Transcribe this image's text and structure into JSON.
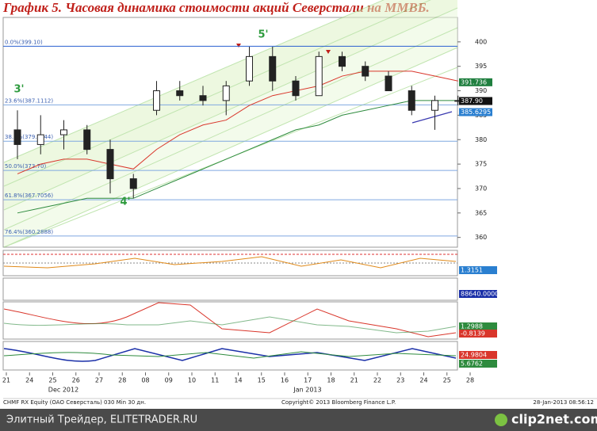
{
  "header": {
    "title": "График 5.   Часовая динамика стоимости акций Северстали на ММВБ."
  },
  "chart_data": {
    "type": "candlestick",
    "categories": [
      "21",
      "24",
      "25",
      "26",
      "27",
      "28",
      "08",
      "09",
      "10",
      "11",
      "14",
      "15",
      "16",
      "17",
      "18",
      "21",
      "22",
      "23",
      "24",
      "25",
      "28"
    ],
    "open": [
      382,
      379,
      381,
      382,
      378,
      372,
      386,
      390,
      389,
      388,
      392,
      397,
      392,
      389,
      397,
      395,
      393,
      390,
      386,
      388,
      null
    ],
    "high": [
      386,
      385,
      384,
      383,
      380,
      373,
      392,
      392,
      391,
      392,
      399,
      399,
      393,
      398,
      398,
      396,
      394,
      391,
      389,
      389,
      null
    ],
    "low": [
      376,
      377,
      378,
      377,
      369,
      368,
      385,
      388,
      387,
      385,
      391,
      390,
      388,
      389,
      394,
      392,
      390,
      385,
      382,
      387,
      null
    ],
    "close": [
      379,
      381,
      382,
      378,
      372,
      370,
      390,
      389,
      388,
      391,
      397,
      392,
      389,
      397,
      395,
      393,
      390,
      386,
      388,
      388,
      null
    ],
    "lines": [
      {
        "color": "#d9362b",
        "values": [
          373,
          375,
          376,
          376,
          375,
          374,
          378,
          381,
          383,
          384,
          387,
          389,
          390,
          391,
          393,
          394,
          394,
          394,
          393,
          392,
          null
        ]
      },
      {
        "color": "#2e8b3e",
        "values": [
          365,
          366,
          367,
          368,
          368,
          368,
          370,
          372,
          374,
          376,
          378,
          380,
          382,
          383,
          385,
          386,
          387,
          388,
          388,
          388,
          null
        ]
      }
    ],
    "levels": [
      {
        "label": "0.0%(399.10)",
        "value": 399.1
      },
      {
        "label": "23.6%(387.1112)",
        "value": 387.1112
      },
      {
        "label": "38.2%(379.6844)",
        "value": 379.6844
      },
      {
        "label": "50.0%(373.70)",
        "value": 373.7
      },
      {
        "label": "61.8%(367.7056)",
        "value": 367.7056
      },
      {
        "label": "76.4%(360.2888)",
        "value": 360.2888
      }
    ],
    "wave_labels": [
      "3'",
      "4'",
      "5'"
    ],
    "last_values": {
      "values": [
        391.736,
        387.9,
        385.6295
      ],
      "value_labels": [
        "391.736",
        "387.90",
        "385.6295"
      ],
      "colors": [
        "#1f7f3f",
        "#111111",
        "#2a7fd0"
      ]
    },
    "ylim": [
      358,
      405
    ],
    "yticks": [
      360,
      365,
      370,
      375,
      380,
      385,
      390,
      395,
      400
    ],
    "month_labels": [
      "Dec 2012",
      "Jan 2013"
    ],
    "indicator_labels": [
      "1.3151",
      "88640.0000",
      "1.2988",
      "-0.8139",
      "24.9804",
      "5.6762"
    ]
  },
  "footer": {
    "left": "CHMF RX Equity (OAO Северсталь) 030 Min 30 дн.",
    "center": "Copyright© 2013 Bloomberg Finance L.P.",
    "right": "28-Jan-2013 08:56:12"
  },
  "watermark": {
    "left": "Элитный Трейдер, ELITETRADER.RU",
    "right": "clip2net.com"
  }
}
